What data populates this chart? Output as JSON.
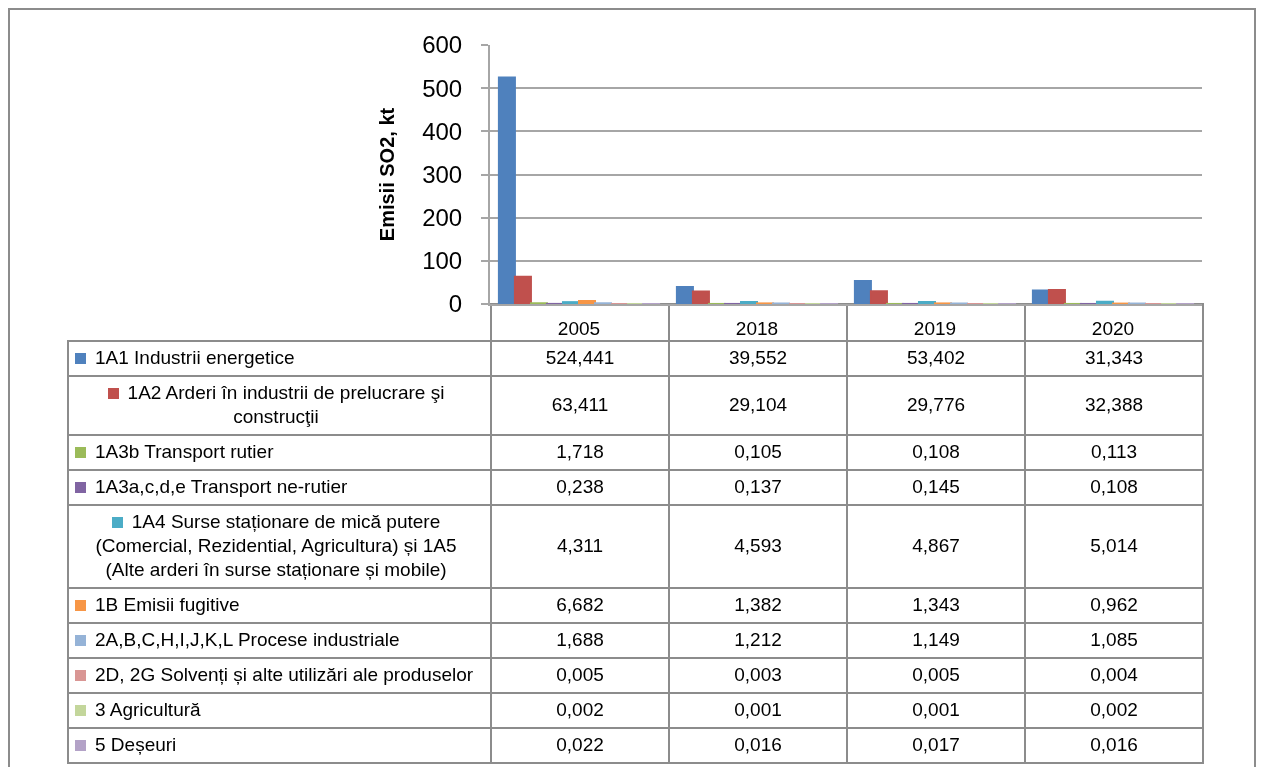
{
  "chart_data": {
    "type": "bar",
    "ylabel": "Emisii SO2, kt",
    "categories": [
      "2005",
      "2018",
      "2019",
      "2020"
    ],
    "ylim": [
      0,
      600
    ],
    "yticks": [
      0,
      100,
      200,
      300,
      400,
      500,
      600
    ],
    "grid": "y",
    "legend": "bottom",
    "series": [
      {
        "name": "1A1 Industrii energetice",
        "color": "#4f81bd",
        "values": [
          524.441,
          39.552,
          53.402,
          31.343
        ],
        "value_labels": [
          "524,441",
          "39,552",
          "53,402",
          "31,343"
        ]
      },
      {
        "name": "1A2 Arderi în industrii de prelucrare şi construcţii",
        "color": "#c0504d",
        "values": [
          63.411,
          29.104,
          29.776,
          32.388
        ],
        "value_labels": [
          "63,411",
          "29,104",
          "29,776",
          "32,388"
        ]
      },
      {
        "name": "1A3b Transport rutier",
        "color": "#9bbb59",
        "values": [
          1.718,
          0.105,
          0.108,
          0.113
        ],
        "value_labels": [
          "1,718",
          "0,105",
          "0,108",
          "0,113"
        ]
      },
      {
        "name": "1A3a,c,d,e Transport ne-rutier",
        "color": "#8064a2",
        "values": [
          0.238,
          0.137,
          0.145,
          0.108
        ],
        "value_labels": [
          "0,238",
          "0,137",
          "0,145",
          "0,108"
        ]
      },
      {
        "name": "1A4 Surse staționare de mică putere (Comercial, Rezidential, Agricultura) și 1A5 (Alte arderi în surse staționare și mobile)",
        "color": "#4bacc6",
        "values": [
          4.311,
          4.593,
          4.867,
          5.014
        ],
        "value_labels": [
          "4,311",
          "4,593",
          "4,867",
          "5,014"
        ]
      },
      {
        "name": "1B Emisii fugitive",
        "color": "#f79646",
        "values": [
          6.682,
          1.382,
          1.343,
          0.962
        ],
        "value_labels": [
          "6,682",
          "1,382",
          "1,343",
          "0,962"
        ]
      },
      {
        "name": "2A,B,C,H,I,J,K,L Procese industriale",
        "color": "#95b3d7",
        "values": [
          1.688,
          1.212,
          1.149,
          1.085
        ],
        "value_labels": [
          "1,688",
          "1,212",
          "1,149",
          "1,085"
        ]
      },
      {
        "name": "2D, 2G Solvenți și alte utilizări ale produselor",
        "color": "#d99694",
        "values": [
          0.005,
          0.003,
          0.005,
          0.004
        ],
        "value_labels": [
          "0,005",
          "0,003",
          "0,005",
          "0,004"
        ]
      },
      {
        "name": "3 Agricultură",
        "color": "#c3d69b",
        "values": [
          0.002,
          0.001,
          0.001,
          0.002
        ],
        "value_labels": [
          "0,002",
          "0,001",
          "0,001",
          "0,002"
        ]
      },
      {
        "name": "5 Deșeuri",
        "color": "#b3a2c7",
        "values": [
          0.022,
          0.016,
          0.017,
          0.016
        ],
        "value_labels": [
          "0,022",
          "0,016",
          "0,017",
          "0,016"
        ]
      }
    ]
  }
}
